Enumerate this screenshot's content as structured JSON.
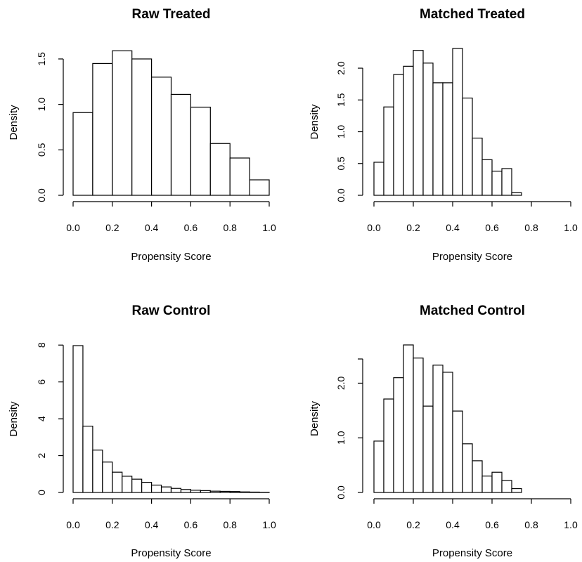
{
  "chart_data": [
    {
      "type": "bar",
      "title": "Raw Treated",
      "xlabel": "Propensity Score",
      "ylabel": "Density",
      "xlim": [
        0,
        1
      ],
      "ylim": [
        0,
        1.6
      ],
      "x_ticks": [
        0.0,
        0.2,
        0.4,
        0.6,
        0.8,
        1.0
      ],
      "x_tick_labels": [
        "0.0",
        "0.2",
        "0.4",
        "0.6",
        "0.8",
        "1.0"
      ],
      "y_ticks": [
        0.0,
        0.5,
        1.0,
        1.5
      ],
      "y_tick_labels": [
        "0.0",
        "0.5",
        "1.0",
        "1.5"
      ],
      "bin_edges": [
        0.0,
        0.1,
        0.2,
        0.3,
        0.4,
        0.5,
        0.6,
        0.7,
        0.8,
        0.9,
        1.0
      ],
      "values": [
        0.91,
        1.45,
        1.59,
        1.5,
        1.3,
        1.11,
        0.97,
        0.57,
        0.41,
        0.17
      ]
    },
    {
      "type": "bar",
      "title": "Matched Treated",
      "xlabel": "Propensity Score",
      "ylabel": "Density",
      "xlim": [
        0,
        1
      ],
      "ylim": [
        0,
        2.3
      ],
      "x_ticks": [
        0.0,
        0.2,
        0.4,
        0.6,
        0.8,
        1.0
      ],
      "x_tick_labels": [
        "0.0",
        "0.2",
        "0.4",
        "0.6",
        "0.8",
        "1.0"
      ],
      "y_ticks": [
        0.0,
        0.5,
        1.0,
        1.5,
        2.0
      ],
      "y_tick_labels": [
        "0.0",
        "0.5",
        "1.0",
        "1.5",
        "2.0"
      ],
      "bin_edges": [
        0.0,
        0.05,
        0.1,
        0.15,
        0.2,
        0.25,
        0.3,
        0.35,
        0.4,
        0.45,
        0.5,
        0.55,
        0.6,
        0.65,
        0.7,
        0.75
      ],
      "values": [
        0.52,
        1.39,
        1.9,
        2.03,
        2.28,
        2.08,
        1.77,
        1.77,
        2.31,
        1.53,
        0.9,
        0.56,
        0.38,
        0.42,
        0.04
      ]
    },
    {
      "type": "bar",
      "title": "Raw Control",
      "xlabel": "Propensity Score",
      "ylabel": "Density",
      "xlim": [
        0,
        1
      ],
      "ylim": [
        0,
        8
      ],
      "x_ticks": [
        0.0,
        0.2,
        0.4,
        0.6,
        0.8,
        1.0
      ],
      "x_tick_labels": [
        "0.0",
        "0.2",
        "0.4",
        "0.6",
        "0.8",
        "1.0"
      ],
      "y_ticks": [
        0,
        2,
        4,
        6,
        8
      ],
      "y_tick_labels": [
        "0",
        "2",
        "4",
        "6",
        "8"
      ],
      "bin_edges": [
        0.0,
        0.05,
        0.1,
        0.15,
        0.2,
        0.25,
        0.3,
        0.35,
        0.4,
        0.45,
        0.5,
        0.55,
        0.6,
        0.65,
        0.7,
        0.75,
        0.8,
        0.85,
        0.9,
        0.95,
        1.0
      ],
      "values": [
        7.97,
        3.6,
        2.3,
        1.65,
        1.1,
        0.88,
        0.72,
        0.55,
        0.4,
        0.3,
        0.22,
        0.16,
        0.12,
        0.1,
        0.07,
        0.06,
        0.05,
        0.03,
        0.02,
        0.01
      ]
    },
    {
      "type": "bar",
      "title": "Matched Control",
      "xlabel": "Propensity Score",
      "ylabel": "Density",
      "xlim": [
        0,
        1
      ],
      "ylim": [
        0,
        2.5
      ],
      "x_ticks": [
        0.0,
        0.2,
        0.4,
        0.6,
        0.8,
        1.0
      ],
      "x_tick_labels": [
        "0.0",
        "0.2",
        "0.4",
        "0.6",
        "0.8",
        "1.0"
      ],
      "y_ticks": [
        0.0,
        1.0,
        2.0
      ],
      "y_tick_labels": [
        "0.0",
        "1.0",
        "2.0"
      ],
      "bin_edges": [
        0.0,
        0.05,
        0.1,
        0.15,
        0.2,
        0.25,
        0.3,
        0.35,
        0.4,
        0.45,
        0.5,
        0.55,
        0.6,
        0.65,
        0.7,
        0.75
      ],
      "values": [
        0.94,
        1.71,
        2.1,
        2.7,
        2.46,
        1.58,
        2.33,
        2.2,
        1.49,
        0.89,
        0.58,
        0.3,
        0.37,
        0.22,
        0.07
      ]
    }
  ]
}
